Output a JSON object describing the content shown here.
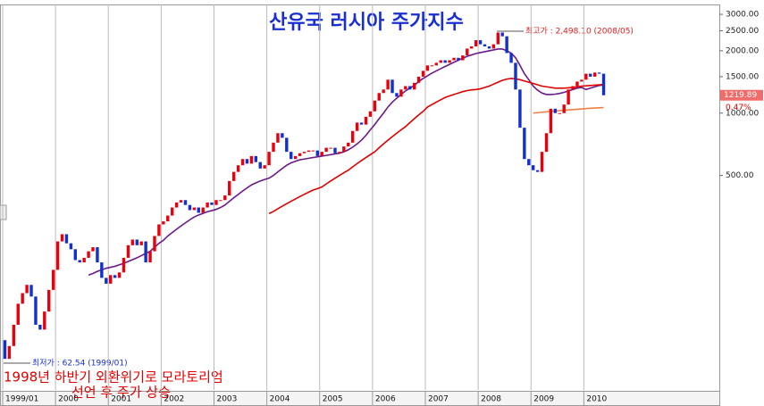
{
  "chart_data": {
    "type": "candlestick",
    "title": "산유국 러시아 주가지수",
    "categories": [
      "1999/01",
      null,
      null,
      null,
      null,
      null,
      null,
      null,
      null,
      null,
      null,
      null,
      "2000",
      null,
      null,
      null,
      null,
      null,
      null,
      null,
      null,
      null,
      null,
      null,
      "2001",
      null,
      null,
      null,
      null,
      null,
      null,
      null,
      null,
      null,
      null,
      null,
      "2002",
      null,
      null,
      null,
      null,
      null,
      null,
      null,
      null,
      null,
      null,
      null,
      "2003",
      null,
      null,
      null,
      null,
      null,
      null,
      null,
      null,
      null,
      null,
      null,
      "2004",
      null,
      null,
      null,
      null,
      null,
      null,
      null,
      null,
      null,
      null,
      null,
      "2005",
      null,
      null,
      null,
      null,
      null,
      null,
      null,
      null,
      null,
      null,
      null,
      "2006",
      null,
      null,
      null,
      null,
      null,
      null,
      null,
      null,
      null,
      null,
      null,
      "2007",
      null,
      null,
      null,
      null,
      null,
      null,
      null,
      null,
      null,
      null,
      null,
      "2008",
      null,
      null,
      null,
      null,
      null,
      null,
      null,
      null,
      null,
      null,
      null,
      "2009",
      null,
      null,
      null,
      null,
      null,
      null,
      null,
      null,
      null,
      null,
      null,
      "2010",
      null,
      null,
      null,
      null
    ],
    "open": [
      80,
      65,
      75,
      95,
      120,
      135,
      148,
      130,
      95,
      90,
      110,
      140,
      175,
      240,
      260,
      235,
      220,
      195,
      190,
      200,
      215,
      225,
      190,
      160,
      150,
      165,
      160,
      170,
      200,
      230,
      245,
      230,
      240,
      190,
      215,
      255,
      290,
      300,
      320,
      350,
      370,
      380,
      360,
      340,
      350,
      330,
      350,
      370,
      360,
      380,
      380,
      400,
      470,
      520,
      560,
      600,
      570,
      620,
      580,
      540,
      560,
      650,
      720,
      800,
      760,
      650,
      600,
      620,
      640,
      650,
      660,
      660,
      620,
      650,
      680,
      680,
      640,
      650,
      690,
      720,
      820,
      900,
      880,
      960,
      1020,
      1150,
      1250,
      1300,
      1450,
      1250,
      1200,
      1300,
      1350,
      1300,
      1400,
      1500,
      1600,
      1700,
      1700,
      1750,
      1800,
      1750,
      1800,
      1850,
      1800,
      1900,
      2050,
      2100,
      2250,
      2150,
      2100,
      2050,
      2150,
      2450,
      2350,
      1950,
      1750,
      1300,
      850,
      600,
      560,
      530,
      520,
      650,
      800,
      1050,
      1000,
      1000,
      1100,
      1300,
      1350,
      1420,
      1450,
      1550,
      1500,
      1570,
      1550
    ],
    "close": [
      65,
      75,
      95,
      120,
      135,
      148,
      130,
      95,
      90,
      110,
      140,
      175,
      240,
      260,
      235,
      220,
      195,
      190,
      200,
      215,
      225,
      190,
      160,
      150,
      165,
      160,
      170,
      200,
      230,
      245,
      230,
      240,
      190,
      215,
      255,
      290,
      300,
      320,
      350,
      370,
      380,
      360,
      340,
      350,
      330,
      350,
      370,
      360,
      380,
      380,
      400,
      470,
      520,
      560,
      600,
      570,
      620,
      580,
      540,
      560,
      650,
      720,
      800,
      760,
      650,
      600,
      620,
      640,
      650,
      660,
      660,
      620,
      650,
      680,
      680,
      640,
      650,
      690,
      720,
      820,
      900,
      880,
      960,
      1020,
      1150,
      1250,
      1300,
      1450,
      1250,
      1200,
      1300,
      1350,
      1300,
      1400,
      1500,
      1600,
      1700,
      1700,
      1750,
      1800,
      1750,
      1800,
      1850,
      1800,
      1900,
      2050,
      2100,
      2250,
      2150,
      2100,
      2050,
      2150,
      2450,
      2350,
      1950,
      1750,
      1300,
      850,
      600,
      560,
      530,
      520,
      650,
      800,
      1050,
      1000,
      1000,
      1100,
      1300,
      1350,
      1420,
      1450,
      1550,
      1500,
      1570,
      1550,
      1219.89
    ],
    "up_color": "#e8000c",
    "down_color": "#1030d0",
    "series": [
      {
        "color": "#6a1a8a",
        "values": [
          null,
          null,
          null,
          null,
          null,
          null,
          null,
          null,
          null,
          null,
          null,
          null,
          null,
          null,
          null,
          null,
          null,
          null,
          null,
          165,
          168,
          172,
          175,
          178,
          180,
          182,
          185,
          188,
          192,
          196,
          200,
          205,
          210,
          215,
          225,
          235,
          243,
          255,
          265,
          275,
          285,
          295,
          305,
          315,
          322,
          328,
          334,
          338,
          343,
          350,
          360,
          375,
          390,
          405,
          420,
          435,
          450,
          460,
          470,
          478,
          485,
          500,
          520,
          540,
          560,
          575,
          585,
          595,
          600,
          605,
          610,
          615,
          620,
          625,
          630,
          635,
          640,
          650,
          665,
          685,
          710,
          740,
          780,
          830,
          880,
          940,
          1000,
          1070,
          1130,
          1180,
          1230,
          1280,
          1320,
          1360,
          1420,
          1470,
          1515,
          1560,
          1600,
          1640,
          1680,
          1720,
          1760,
          1800,
          1840,
          1880,
          1910,
          1940,
          1960,
          1980,
          2000,
          2020,
          2040,
          2040,
          2000,
          1950,
          1850,
          1700,
          1550,
          1450,
          1350,
          1290,
          1250,
          1230,
          1230,
          1235,
          1245,
          1260,
          1280,
          1300,
          1320,
          1330,
          1300,
          1320,
          1340,
          1360,
          1370
        ]
      },
      {
        "color": "#e00000",
        "values": [
          null,
          null,
          null,
          null,
          null,
          null,
          null,
          null,
          null,
          null,
          null,
          null,
          null,
          null,
          null,
          null,
          null,
          null,
          null,
          null,
          null,
          null,
          null,
          null,
          null,
          null,
          null,
          null,
          null,
          null,
          null,
          null,
          null,
          null,
          null,
          null,
          null,
          null,
          null,
          null,
          null,
          null,
          null,
          null,
          null,
          null,
          null,
          null,
          null,
          null,
          null,
          null,
          null,
          null,
          null,
          null,
          null,
          null,
          null,
          null,
          327,
          335,
          345,
          355,
          365,
          375,
          385,
          395,
          405,
          415,
          425,
          432,
          440,
          455,
          470,
          485,
          500,
          515,
          530,
          550,
          570,
          590,
          610,
          630,
          650,
          680,
          710,
          740,
          770,
          800,
          830,
          860,
          900,
          940,
          980,
          1020,
          1070,
          1100,
          1130,
          1160,
          1190,
          1210,
          1230,
          1250,
          1270,
          1285,
          1295,
          1300,
          1310,
          1330,
          1350,
          1380,
          1410,
          1440,
          1460,
          1470,
          1465,
          1450,
          1430,
          1410,
          1390,
          1370,
          1350,
          1340,
          1330,
          1320,
          1320,
          1320,
          1325,
          1330,
          1340,
          1350,
          1355,
          1360,
          1365,
          1370,
          1375
        ]
      },
      {
        "color": "#f08040",
        "values": [
          null,
          null,
          null,
          null,
          null,
          null,
          null,
          null,
          null,
          null,
          null,
          null,
          null,
          null,
          null,
          null,
          null,
          null,
          null,
          null,
          null,
          null,
          null,
          null,
          null,
          null,
          null,
          null,
          null,
          null,
          null,
          null,
          null,
          null,
          null,
          null,
          null,
          null,
          null,
          null,
          null,
          null,
          null,
          null,
          null,
          null,
          null,
          null,
          null,
          null,
          null,
          null,
          null,
          null,
          null,
          null,
          null,
          null,
          null,
          null,
          null,
          null,
          null,
          null,
          null,
          null,
          null,
          null,
          null,
          null,
          null,
          null,
          null,
          null,
          null,
          null,
          null,
          null,
          null,
          null,
          null,
          null,
          null,
          null,
          null,
          null,
          null,
          null,
          null,
          null,
          null,
          null,
          null,
          null,
          null,
          null,
          null,
          null,
          null,
          null,
          null,
          null,
          null,
          null,
          null,
          null,
          null,
          null,
          null,
          null,
          null,
          null,
          null,
          null,
          null,
          null,
          null,
          null,
          null,
          null,
          1000,
          1005,
          1010,
          1015,
          1020,
          1024,
          1028,
          1032,
          1036,
          1040,
          1044,
          1048,
          1052,
          1055,
          1058,
          1061,
          1064
        ]
      }
    ],
    "ylim": [
      46,
      3250
    ],
    "log_scale": true,
    "yticks": [
      {
        "value": 500,
        "label": "500.00"
      },
      {
        "value": 1000,
        "label": "1000.00"
      },
      {
        "value": 1500,
        "label": "1500.00"
      },
      {
        "value": 2000,
        "label": "2000.00"
      },
      {
        "value": 2500,
        "label": "2500.00"
      },
      {
        "value": 3000,
        "label": "3000.00"
      }
    ],
    "last_price": 1219.89,
    "change": "0.47%",
    "annotations": [
      "최고가 : 2,498.10 (2008/05)",
      "최저가 : 62.54 (1999/01)"
    ],
    "note": [
      "1998년 하반기 외환위기로 모라토리엄",
      "선언 후 주가 상승"
    ]
  }
}
